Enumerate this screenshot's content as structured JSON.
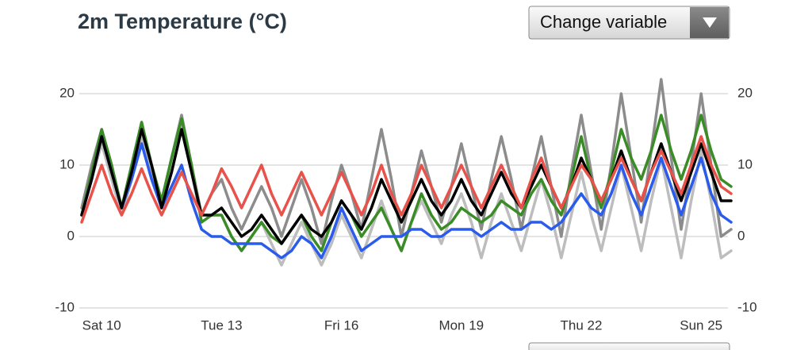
{
  "chart_data": {
    "type": "line",
    "title": "2m Temperature (°C)",
    "button": "Change variable",
    "categories": [
      null,
      null,
      "Sat 10",
      null,
      null,
      null,
      null,
      null,
      null,
      null,
      null,
      null,
      null,
      null,
      "Tue 13",
      null,
      null,
      null,
      null,
      null,
      null,
      null,
      null,
      null,
      null,
      null,
      "Fri 16",
      null,
      null,
      null,
      null,
      null,
      null,
      null,
      null,
      null,
      null,
      null,
      "Mon 19",
      null,
      null,
      null,
      null,
      null,
      null,
      null,
      null,
      null,
      null,
      null,
      "Thu 22",
      null,
      null,
      null,
      null,
      null,
      null,
      null,
      null,
      null,
      null,
      null,
      "Sun 25",
      null,
      null,
      null
    ],
    "ylim": [
      -10,
      22
    ],
    "yticks": [
      -10,
      0,
      10,
      20
    ],
    "grid": true,
    "series": [
      {
        "color": "#8c8c8c",
        "values": [
          4,
          10,
          15,
          10,
          4,
          10,
          16,
          10,
          5,
          11,
          17,
          10,
          3,
          6,
          8,
          4,
          1,
          4,
          7,
          4,
          0,
          4,
          8,
          4,
          -1,
          5,
          10,
          6,
          1,
          8,
          15,
          8,
          0,
          6,
          12,
          7,
          2,
          7,
          13,
          7,
          1,
          8,
          14,
          8,
          1,
          8,
          14,
          7,
          0,
          9,
          17,
          9,
          1,
          10,
          20,
          11,
          2,
          12,
          22,
          11,
          1,
          10,
          20,
          10,
          0,
          1
        ]
      },
      {
        "color": "#bdbdbd",
        "values": [
          3,
          8,
          13,
          8,
          3,
          8,
          14,
          9,
          4,
          10,
          16,
          9,
          2,
          3,
          3,
          0,
          -2,
          0,
          2,
          -1,
          -4,
          -1,
          2,
          -1,
          -4,
          -1,
          3,
          0,
          -3,
          1,
          5,
          1,
          -2,
          2,
          5,
          2,
          -1,
          3,
          6,
          2,
          -3,
          2,
          6,
          2,
          -2,
          3,
          8,
          3,
          -3,
          3,
          9,
          3,
          -2,
          4,
          10,
          4,
          -2,
          5,
          11,
          4,
          -3,
          5,
          12,
          5,
          -3,
          -2
        ]
      },
      {
        "color": "#3a8c26",
        "values": [
          3,
          9,
          15,
          10,
          4,
          10,
          16,
          10,
          5,
          11,
          16.5,
          10,
          2,
          3,
          3,
          0,
          -2,
          0,
          2,
          0,
          -1,
          1,
          3,
          0,
          -2,
          2,
          5,
          3,
          0,
          2,
          4,
          1,
          -2,
          2,
          6,
          3,
          1,
          2,
          4,
          3,
          2,
          3,
          5,
          4,
          3,
          6,
          8,
          5,
          3,
          8,
          14,
          8,
          4,
          9,
          15,
          11,
          8,
          12,
          17,
          12,
          8,
          12,
          17,
          12,
          8,
          7
        ]
      },
      {
        "color": "#2a5bea",
        "values": [
          3,
          8,
          14,
          9,
          4,
          8,
          13,
          8,
          4,
          7,
          10,
          5,
          1,
          0,
          0,
          -1,
          -1,
          -1,
          -1,
          -2,
          -3,
          -2,
          0,
          -1,
          -3,
          0,
          4,
          1,
          -2,
          -1,
          0,
          0,
          0,
          1,
          1,
          0,
          0,
          1,
          1,
          1,
          0,
          1,
          2,
          1,
          1,
          2,
          2,
          1,
          2,
          4,
          6,
          4,
          3,
          6,
          10,
          6,
          3,
          7,
          11,
          7,
          3,
          7,
          11,
          6,
          3,
          2
        ]
      },
      {
        "color": "#000000",
        "values": [
          3,
          8,
          14,
          9,
          4,
          9,
          15,
          10,
          4,
          9,
          15,
          9,
          3,
          3,
          4,
          2,
          0,
          1,
          3,
          1,
          -1,
          1,
          3,
          1,
          0,
          2,
          5,
          3,
          1,
          4,
          8,
          5,
          2,
          5,
          8,
          5,
          3,
          5,
          8,
          5,
          3,
          6,
          9,
          6,
          4,
          7,
          10,
          7,
          4,
          7,
          11,
          8,
          5,
          8,
          12,
          8,
          5,
          9,
          13,
          9,
          5,
          9,
          13,
          9,
          5,
          5
        ]
      },
      {
        "color": "#e8524a",
        "values": [
          2,
          6,
          10,
          6,
          3,
          6,
          9.5,
          6,
          3,
          6,
          9,
          6,
          3,
          6,
          9.5,
          7,
          4,
          7,
          10,
          6,
          3,
          6,
          9,
          6,
          3,
          6,
          9,
          6,
          3,
          6,
          10,
          6,
          3,
          6,
          10,
          7,
          4,
          7,
          10,
          7,
          4,
          7,
          10,
          7,
          4,
          8,
          11,
          7,
          4,
          7,
          10,
          8,
          5,
          8,
          11,
          8,
          5,
          9,
          12,
          9,
          6,
          10,
          14,
          10,
          7,
          6
        ]
      }
    ]
  }
}
